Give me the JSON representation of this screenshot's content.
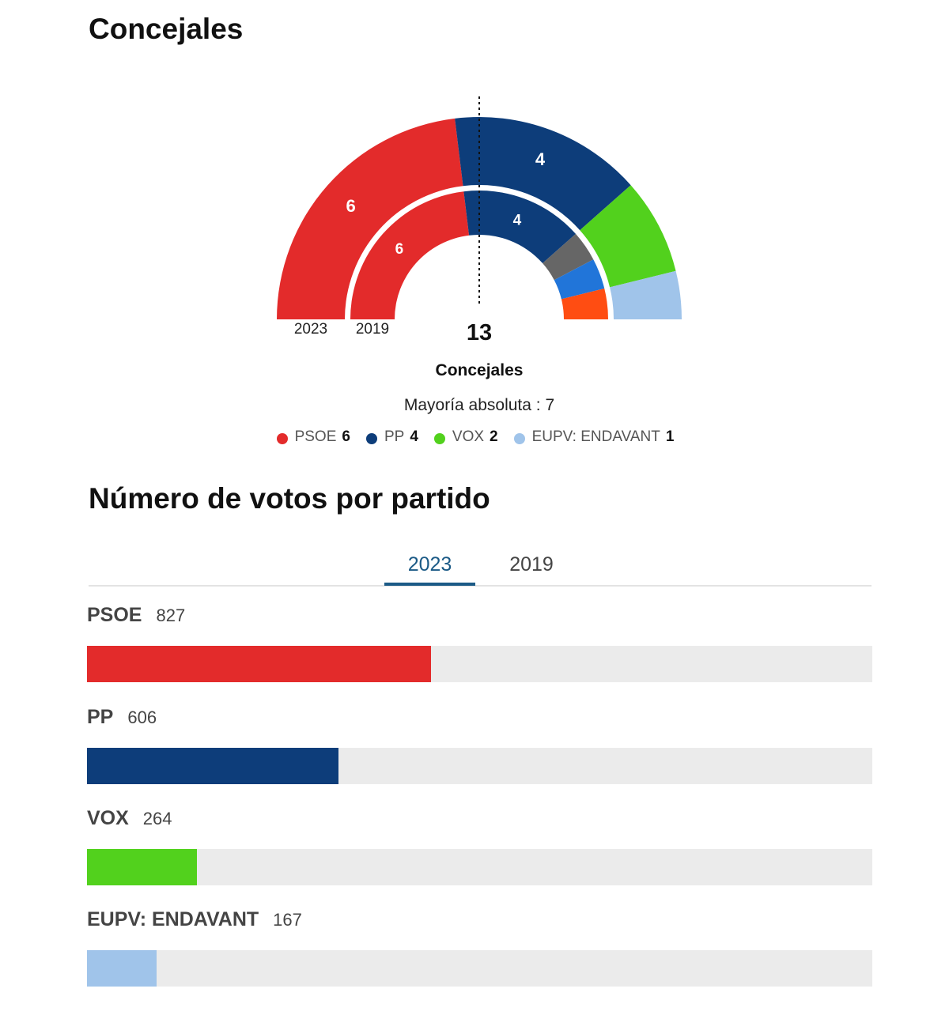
{
  "concejales": {
    "title": "Concejales",
    "total": "13",
    "total_label": "Concejales",
    "majority": "Mayoría absoluta : 7",
    "ring_labels": {
      "outer": "2023",
      "inner": "2019"
    }
  },
  "legend": [
    {
      "party": "PSOE",
      "seats": "6",
      "color": "#e32b2b"
    },
    {
      "party": "PP",
      "seats": "4",
      "color": "#0d3d7a"
    },
    {
      "party": "VOX",
      "seats": "2",
      "color": "#52d11d"
    },
    {
      "party": "EUPV: ENDAVANT",
      "seats": "1",
      "color": "#a0c4ea"
    }
  ],
  "votos": {
    "title": "Número de votos por partido",
    "tabs": [
      {
        "label": "2023",
        "active": true
      },
      {
        "label": "2019",
        "active": false
      }
    ]
  },
  "chart_data": [
    {
      "type": "pie",
      "subtype": "hemicycle",
      "title": "Concejales",
      "total_seats": 13,
      "majority": 7,
      "series": [
        {
          "name": "2023",
          "segments": [
            {
              "party": "PSOE",
              "seats": 6,
              "color": "#e32b2b",
              "label": "6"
            },
            {
              "party": "PP",
              "seats": 4,
              "color": "#0d3d7a",
              "label": "4"
            },
            {
              "party": "VOX",
              "seats": 2,
              "color": "#52d11d",
              "label": ""
            },
            {
              "party": "EUPV: ENDAVANT",
              "seats": 1,
              "color": "#a0c4ea",
              "label": ""
            }
          ]
        },
        {
          "name": "2019",
          "segments": [
            {
              "party": "PSOE",
              "seats": 6,
              "color": "#e32b2b",
              "label": "6"
            },
            {
              "party": "PP",
              "seats": 4,
              "color": "#0d3d7a",
              "label": "4"
            },
            {
              "party": "",
              "seats": 1,
              "color": "#666666",
              "label": ""
            },
            {
              "party": "",
              "seats": 1,
              "color": "#2175d9",
              "label": ""
            },
            {
              "party": "",
              "seats": 1,
              "color": "#ff4d12",
              "label": ""
            }
          ]
        }
      ]
    },
    {
      "type": "bar",
      "title": "Número de votos por partido",
      "year": "2023",
      "categories": [
        "PSOE",
        "PP",
        "VOX",
        "EUPV: ENDAVANT"
      ],
      "values": [
        827,
        606,
        264,
        167
      ],
      "value_labels": [
        "827",
        "606",
        "264",
        "167"
      ],
      "colors": [
        "#e32b2b",
        "#0d3d7a",
        "#52d11d",
        "#a0c4ea"
      ],
      "xlim": [
        0,
        1890
      ]
    }
  ]
}
